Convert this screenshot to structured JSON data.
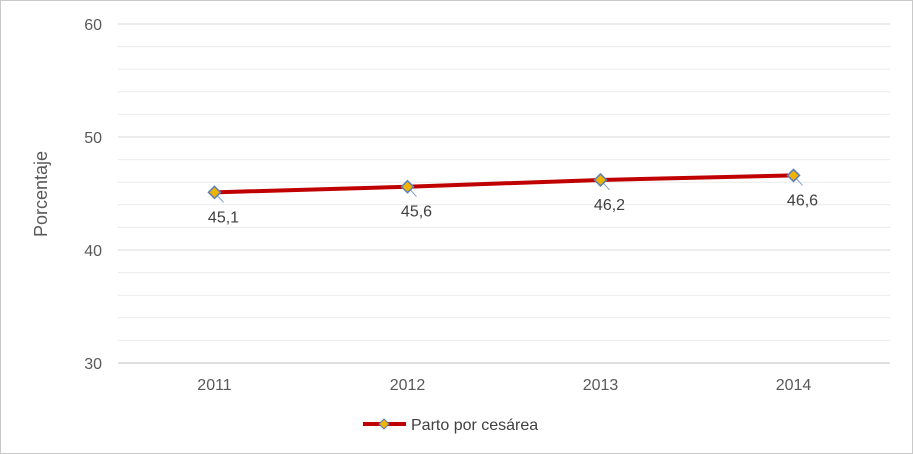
{
  "chart_data": {
    "type": "line",
    "categories": [
      "2011",
      "2012",
      "2013",
      "2014"
    ],
    "series": [
      {
        "name": "Parto por cesárea",
        "values": [
          45.1,
          45.6,
          46.2,
          46.6
        ],
        "data_labels": [
          "45,1",
          "45,6",
          "46,2",
          "46,6"
        ]
      }
    ],
    "ylabel": "Porcentaje",
    "xlabel": "",
    "ylim": [
      30,
      60
    ],
    "y_ticks": [
      30,
      40,
      50,
      60
    ],
    "y_minor_step": 2,
    "grid": true,
    "legend_position": "bottom",
    "colors": {
      "line": "#c00000",
      "marker_fill": "#f0b400",
      "marker_stroke": "#5b7fb8",
      "grid": "#d9d9d9",
      "axis": "#bfbfbf"
    }
  }
}
